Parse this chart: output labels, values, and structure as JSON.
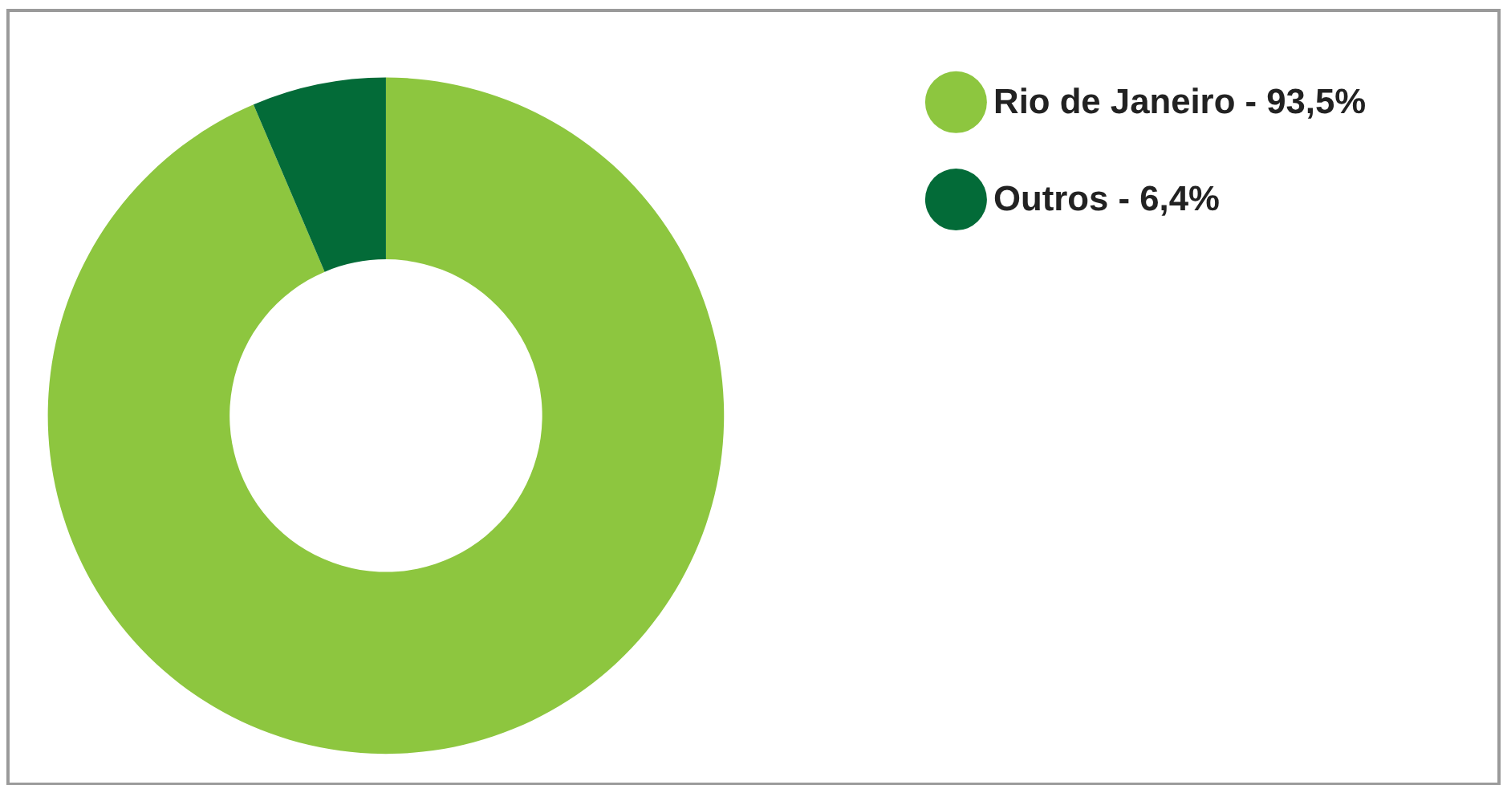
{
  "chart_data": {
    "type": "donut",
    "categories": [
      "Rio de Janeiro - 93,5%",
      "Outros - 6,4%"
    ],
    "values": [
      93.5,
      6.4
    ],
    "colors": [
      "#8dc63f",
      "#036b38"
    ],
    "legend": "top right"
  }
}
